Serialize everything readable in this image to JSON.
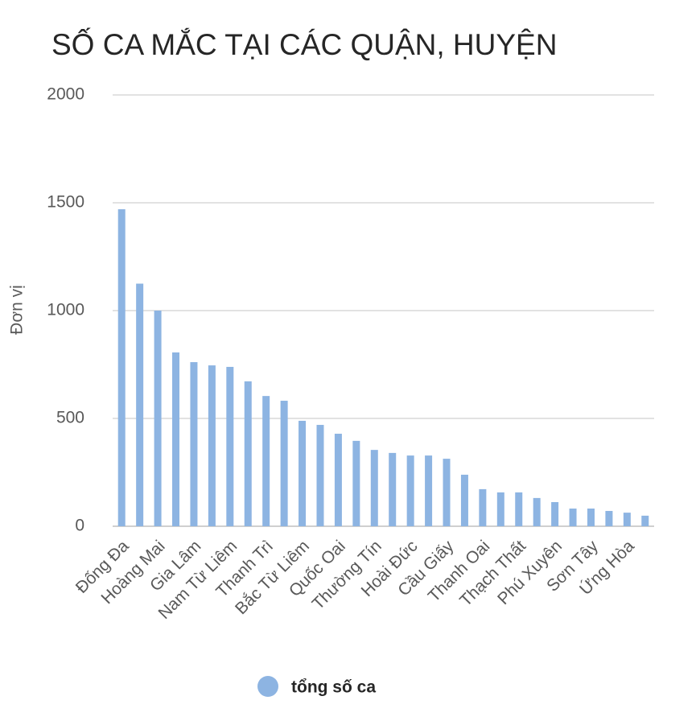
{
  "chart_data": {
    "type": "bar",
    "title": "SỐ CA MẮC TẠI CÁC QUẬN, HUYỆN",
    "y_label": "Đơn vị",
    "categories": [
      "Đống Đa",
      null,
      "Hoàng Mai",
      null,
      "Gia Lâm",
      null,
      "Nam Từ Liêm",
      null,
      "Thanh Trì",
      null,
      "Bắc Từ Liêm",
      null,
      "Quốc Oai",
      null,
      "Thường Tín",
      null,
      "Hoài Đức",
      null,
      "Cầu Giấy",
      null,
      "Thanh Oai",
      null,
      "Thạch Thất",
      null,
      "Phú Xuyên",
      null,
      "Sơn Tây",
      null,
      "Ứng Hòa",
      null
    ],
    "series": [
      {
        "name": "tổng số ca",
        "color": "#8db4e2",
        "values": [
          1470,
          1125,
          1000,
          806,
          761,
          746,
          739,
          672,
          604,
          582,
          489,
          470,
          429,
          396,
          354,
          340,
          328,
          328,
          313,
          239,
          172,
          157,
          157,
          131,
          112,
          82,
          82,
          71,
          63,
          49
        ]
      }
    ],
    "ylim": [
      0,
      2000
    ],
    "yticks": [
      0,
      500,
      1000,
      1500,
      2000
    ],
    "grid": true
  }
}
